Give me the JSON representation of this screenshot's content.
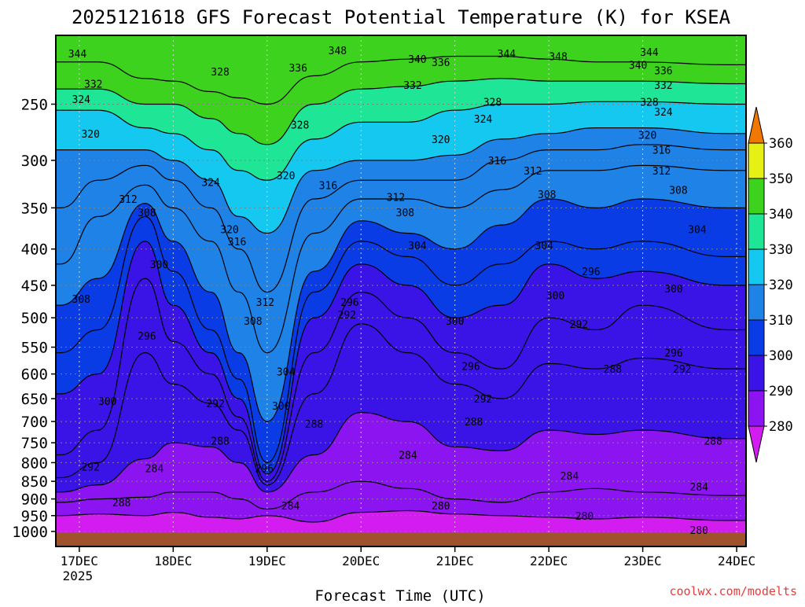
{
  "chart_data": {
    "type": "heatmap",
    "title": "2025121618 GFS Forecast Potential Temperature (K) for KSEA",
    "xlabel": "Forecast Time (UTC)",
    "ylabel": "",
    "credit": "coolwx.com/modelts",
    "y_scale": "log-pressure",
    "ylim": [
      1050,
      200
    ],
    "y_ticks": [
      250,
      300,
      350,
      400,
      450,
      500,
      550,
      600,
      650,
      700,
      750,
      800,
      850,
      900,
      950,
      1000
    ],
    "x_range_days": [
      16.75,
      24.1
    ],
    "x_ticks": [
      {
        "day": 17,
        "label": "17DEC",
        "sub": "2025"
      },
      {
        "day": 18,
        "label": "18DEC",
        "sub": ""
      },
      {
        "day": 19,
        "label": "19DEC",
        "sub": ""
      },
      {
        "day": 20,
        "label": "20DEC",
        "sub": ""
      },
      {
        "day": 21,
        "label": "21DEC",
        "sub": ""
      },
      {
        "day": 22,
        "label": "22DEC",
        "sub": ""
      },
      {
        "day": 23,
        "label": "23DEC",
        "sub": ""
      },
      {
        "day": 24,
        "label": "24DEC",
        "sub": ""
      }
    ],
    "grid": true,
    "colorbar": {
      "levels": [
        280,
        290,
        300,
        310,
        320,
        330,
        340,
        350,
        360
      ],
      "labels": [
        "280",
        "290",
        "300",
        "310",
        "320",
        "330",
        "340",
        "350",
        "360"
      ],
      "colors": [
        "#d21cf0",
        "#8c14f0",
        "#3a14e6",
        "#0a3ce6",
        "#1e82e6",
        "#14c8f0",
        "#1ee696",
        "#3cd21e",
        "#e6f014",
        "#fab400",
        "#f07800"
      ]
    },
    "theta_series": [
      {
        "name": "280 K",
        "values": [
          950,
          945,
          950,
          940,
          955,
          960,
          950,
          970,
          940,
          935,
          945,
          950,
          955,
          960,
          955,
          965
        ]
      },
      {
        "name": "284 K",
        "values": [
          910,
          900,
          895,
          880,
          880,
          900,
          930,
          880,
          850,
          870,
          900,
          910,
          880,
          870,
          880,
          890
        ]
      },
      {
        "name": "288 K",
        "values": [
          880,
          860,
          790,
          750,
          760,
          800,
          880,
          780,
          680,
          700,
          760,
          770,
          720,
          730,
          720,
          740
        ]
      },
      {
        "name": "292 K",
        "values": [
          840,
          800,
          560,
          620,
          660,
          720,
          860,
          640,
          510,
          560,
          620,
          650,
          580,
          590,
          570,
          590
        ]
      },
      {
        "name": "296 K",
        "values": [
          780,
          720,
          440,
          540,
          600,
          690,
          850,
          560,
          460,
          500,
          560,
          590,
          500,
          520,
          480,
          520
        ]
      },
      {
        "name": "300 K",
        "values": [
          640,
          600,
          390,
          480,
          560,
          650,
          830,
          500,
          420,
          450,
          500,
          480,
          420,
          440,
          430,
          450
        ]
      },
      {
        "name": "304 K",
        "values": [
          560,
          520,
          360,
          430,
          520,
          610,
          800,
          460,
          390,
          410,
          450,
          420,
          390,
          400,
          390,
          410
        ]
      },
      {
        "name": "308 K",
        "values": [
          480,
          440,
          345,
          390,
          460,
          560,
          700,
          430,
          365,
          380,
          400,
          370,
          340,
          350,
          340,
          350
        ]
      },
      {
        "name": "312 K",
        "values": [
          420,
          360,
          325,
          350,
          390,
          460,
          560,
          380,
          340,
          340,
          350,
          330,
          310,
          310,
          305,
          310
        ]
      },
      {
        "name": "316 K",
        "values": [
          350,
          320,
          305,
          320,
          350,
          400,
          460,
          340,
          320,
          320,
          320,
          300,
          290,
          290,
          285,
          290
        ]
      },
      {
        "name": "320 K",
        "values": [
          290,
          290,
          290,
          300,
          320,
          360,
          380,
          310,
          300,
          300,
          295,
          280,
          275,
          270,
          270,
          275
        ]
      },
      {
        "name": "328 K",
        "values": [
          255,
          255,
          270,
          275,
          290,
          310,
          320,
          280,
          265,
          265,
          255,
          250,
          250,
          248,
          248,
          250
        ]
      },
      {
        "name": "336 K",
        "values": [
          238,
          238,
          250,
          250,
          262,
          275,
          285,
          250,
          238,
          236,
          232,
          230,
          232,
          232,
          232,
          234
        ]
      },
      {
        "name": "344 K",
        "values": [
          218,
          218,
          230,
          232,
          240,
          245,
          250,
          228,
          218,
          216,
          214,
          214,
          216,
          218,
          218,
          220
        ]
      }
    ],
    "theta_series_x_days": [
      16.8,
      17.2,
      17.7,
      18.0,
      18.4,
      18.7,
      19.0,
      19.5,
      20.0,
      20.5,
      21.0,
      21.5,
      22.0,
      22.5,
      23.0,
      23.9
    ],
    "contour_labels": [
      {
        "text": "344",
        "day": 16.98,
        "p": 212
      },
      {
        "text": "332",
        "day": 17.15,
        "p": 234
      },
      {
        "text": "324",
        "day": 17.02,
        "p": 246
      },
      {
        "text": "320",
        "day": 17.12,
        "p": 275
      },
      {
        "text": "312",
        "day": 17.52,
        "p": 340
      },
      {
        "text": "308",
        "day": 17.72,
        "p": 355
      },
      {
        "text": "300",
        "day": 17.85,
        "p": 420
      },
      {
        "text": "296",
        "day": 17.72,
        "p": 530
      },
      {
        "text": "308",
        "day": 17.02,
        "p": 470
      },
      {
        "text": "300",
        "day": 17.3,
        "p": 655
      },
      {
        "text": "292",
        "day": 17.12,
        "p": 810
      },
      {
        "text": "288",
        "day": 17.45,
        "p": 910
      },
      {
        "text": "284",
        "day": 17.8,
        "p": 815
      },
      {
        "text": "288",
        "day": 18.5,
        "p": 745
      },
      {
        "text": "292",
        "day": 18.45,
        "p": 660
      },
      {
        "text": "328",
        "day": 18.5,
        "p": 225
      },
      {
        "text": "324",
        "day": 18.4,
        "p": 322
      },
      {
        "text": "320",
        "day": 18.6,
        "p": 375
      },
      {
        "text": "316",
        "day": 18.68,
        "p": 390
      },
      {
        "text": "312",
        "day": 18.98,
        "p": 475
      },
      {
        "text": "308",
        "day": 18.85,
        "p": 505
      },
      {
        "text": "304",
        "day": 19.2,
        "p": 595
      },
      {
        "text": "300",
        "day": 19.15,
        "p": 665
      },
      {
        "text": "296",
        "day": 18.97,
        "p": 815
      },
      {
        "text": "288",
        "day": 19.5,
        "p": 705
      },
      {
        "text": "284",
        "day": 19.25,
        "p": 920
      },
      {
        "text": "336",
        "day": 19.33,
        "p": 222
      },
      {
        "text": "328",
        "day": 19.35,
        "p": 267
      },
      {
        "text": "320",
        "day": 19.2,
        "p": 315
      },
      {
        "text": "316",
        "day": 19.65,
        "p": 325
      },
      {
        "text": "348",
        "day": 19.75,
        "p": 210
      },
      {
        "text": "340",
        "day": 20.6,
        "p": 216
      },
      {
        "text": "336",
        "day": 20.85,
        "p": 218
      },
      {
        "text": "332",
        "day": 20.55,
        "p": 235
      },
      {
        "text": "328",
        "day": 21.4,
        "p": 248
      },
      {
        "text": "324",
        "day": 21.3,
        "p": 262
      },
      {
        "text": "320",
        "day": 20.85,
        "p": 280
      },
      {
        "text": "316",
        "day": 21.45,
        "p": 300
      },
      {
        "text": "312",
        "day": 21.83,
        "p": 310
      },
      {
        "text": "312",
        "day": 20.37,
        "p": 338
      },
      {
        "text": "308",
        "day": 20.47,
        "p": 355
      },
      {
        "text": "304",
        "day": 20.6,
        "p": 395
      },
      {
        "text": "296",
        "day": 19.88,
        "p": 475
      },
      {
        "text": "292",
        "day": 19.85,
        "p": 495
      },
      {
        "text": "300",
        "day": 21.0,
        "p": 505
      },
      {
        "text": "296",
        "day": 21.17,
        "p": 585
      },
      {
        "text": "292",
        "day": 21.3,
        "p": 650
      },
      {
        "text": "288",
        "day": 21.2,
        "p": 700
      },
      {
        "text": "284",
        "day": 20.5,
        "p": 780
      },
      {
        "text": "280",
        "day": 20.85,
        "p": 920
      },
      {
        "text": "344",
        "day": 21.55,
        "p": 212
      },
      {
        "text": "348",
        "day": 22.1,
        "p": 214
      },
      {
        "text": "308",
        "day": 21.98,
        "p": 335
      },
      {
        "text": "304",
        "day": 21.95,
        "p": 395
      },
      {
        "text": "296",
        "day": 22.45,
        "p": 430
      },
      {
        "text": "300",
        "day": 22.07,
        "p": 465
      },
      {
        "text": "292",
        "day": 22.32,
        "p": 510
      },
      {
        "text": "288",
        "day": 22.68,
        "p": 590
      },
      {
        "text": "284",
        "day": 22.22,
        "p": 835
      },
      {
        "text": "280",
        "day": 22.38,
        "p": 950
      },
      {
        "text": "344",
        "day": 23.07,
        "p": 211
      },
      {
        "text": "340",
        "day": 22.95,
        "p": 220
      },
      {
        "text": "336",
        "day": 23.22,
        "p": 224
      },
      {
        "text": "332",
        "day": 23.22,
        "p": 235
      },
      {
        "text": "328",
        "day": 23.07,
        "p": 248
      },
      {
        "text": "324",
        "day": 23.22,
        "p": 256
      },
      {
        "text": "320",
        "day": 23.05,
        "p": 276
      },
      {
        "text": "316",
        "day": 23.2,
        "p": 290
      },
      {
        "text": "312",
        "day": 23.2,
        "p": 310
      },
      {
        "text": "308",
        "day": 23.38,
        "p": 330
      },
      {
        "text": "304",
        "day": 23.58,
        "p": 375
      },
      {
        "text": "300",
        "day": 23.33,
        "p": 455
      },
      {
        "text": "296",
        "day": 23.33,
        "p": 560
      },
      {
        "text": "292",
        "day": 23.42,
        "p": 590
      },
      {
        "text": "288",
        "day": 23.75,
        "p": 745
      },
      {
        "text": "284",
        "day": 23.6,
        "p": 865
      },
      {
        "text": "280",
        "day": 23.6,
        "p": 995
      }
    ]
  }
}
